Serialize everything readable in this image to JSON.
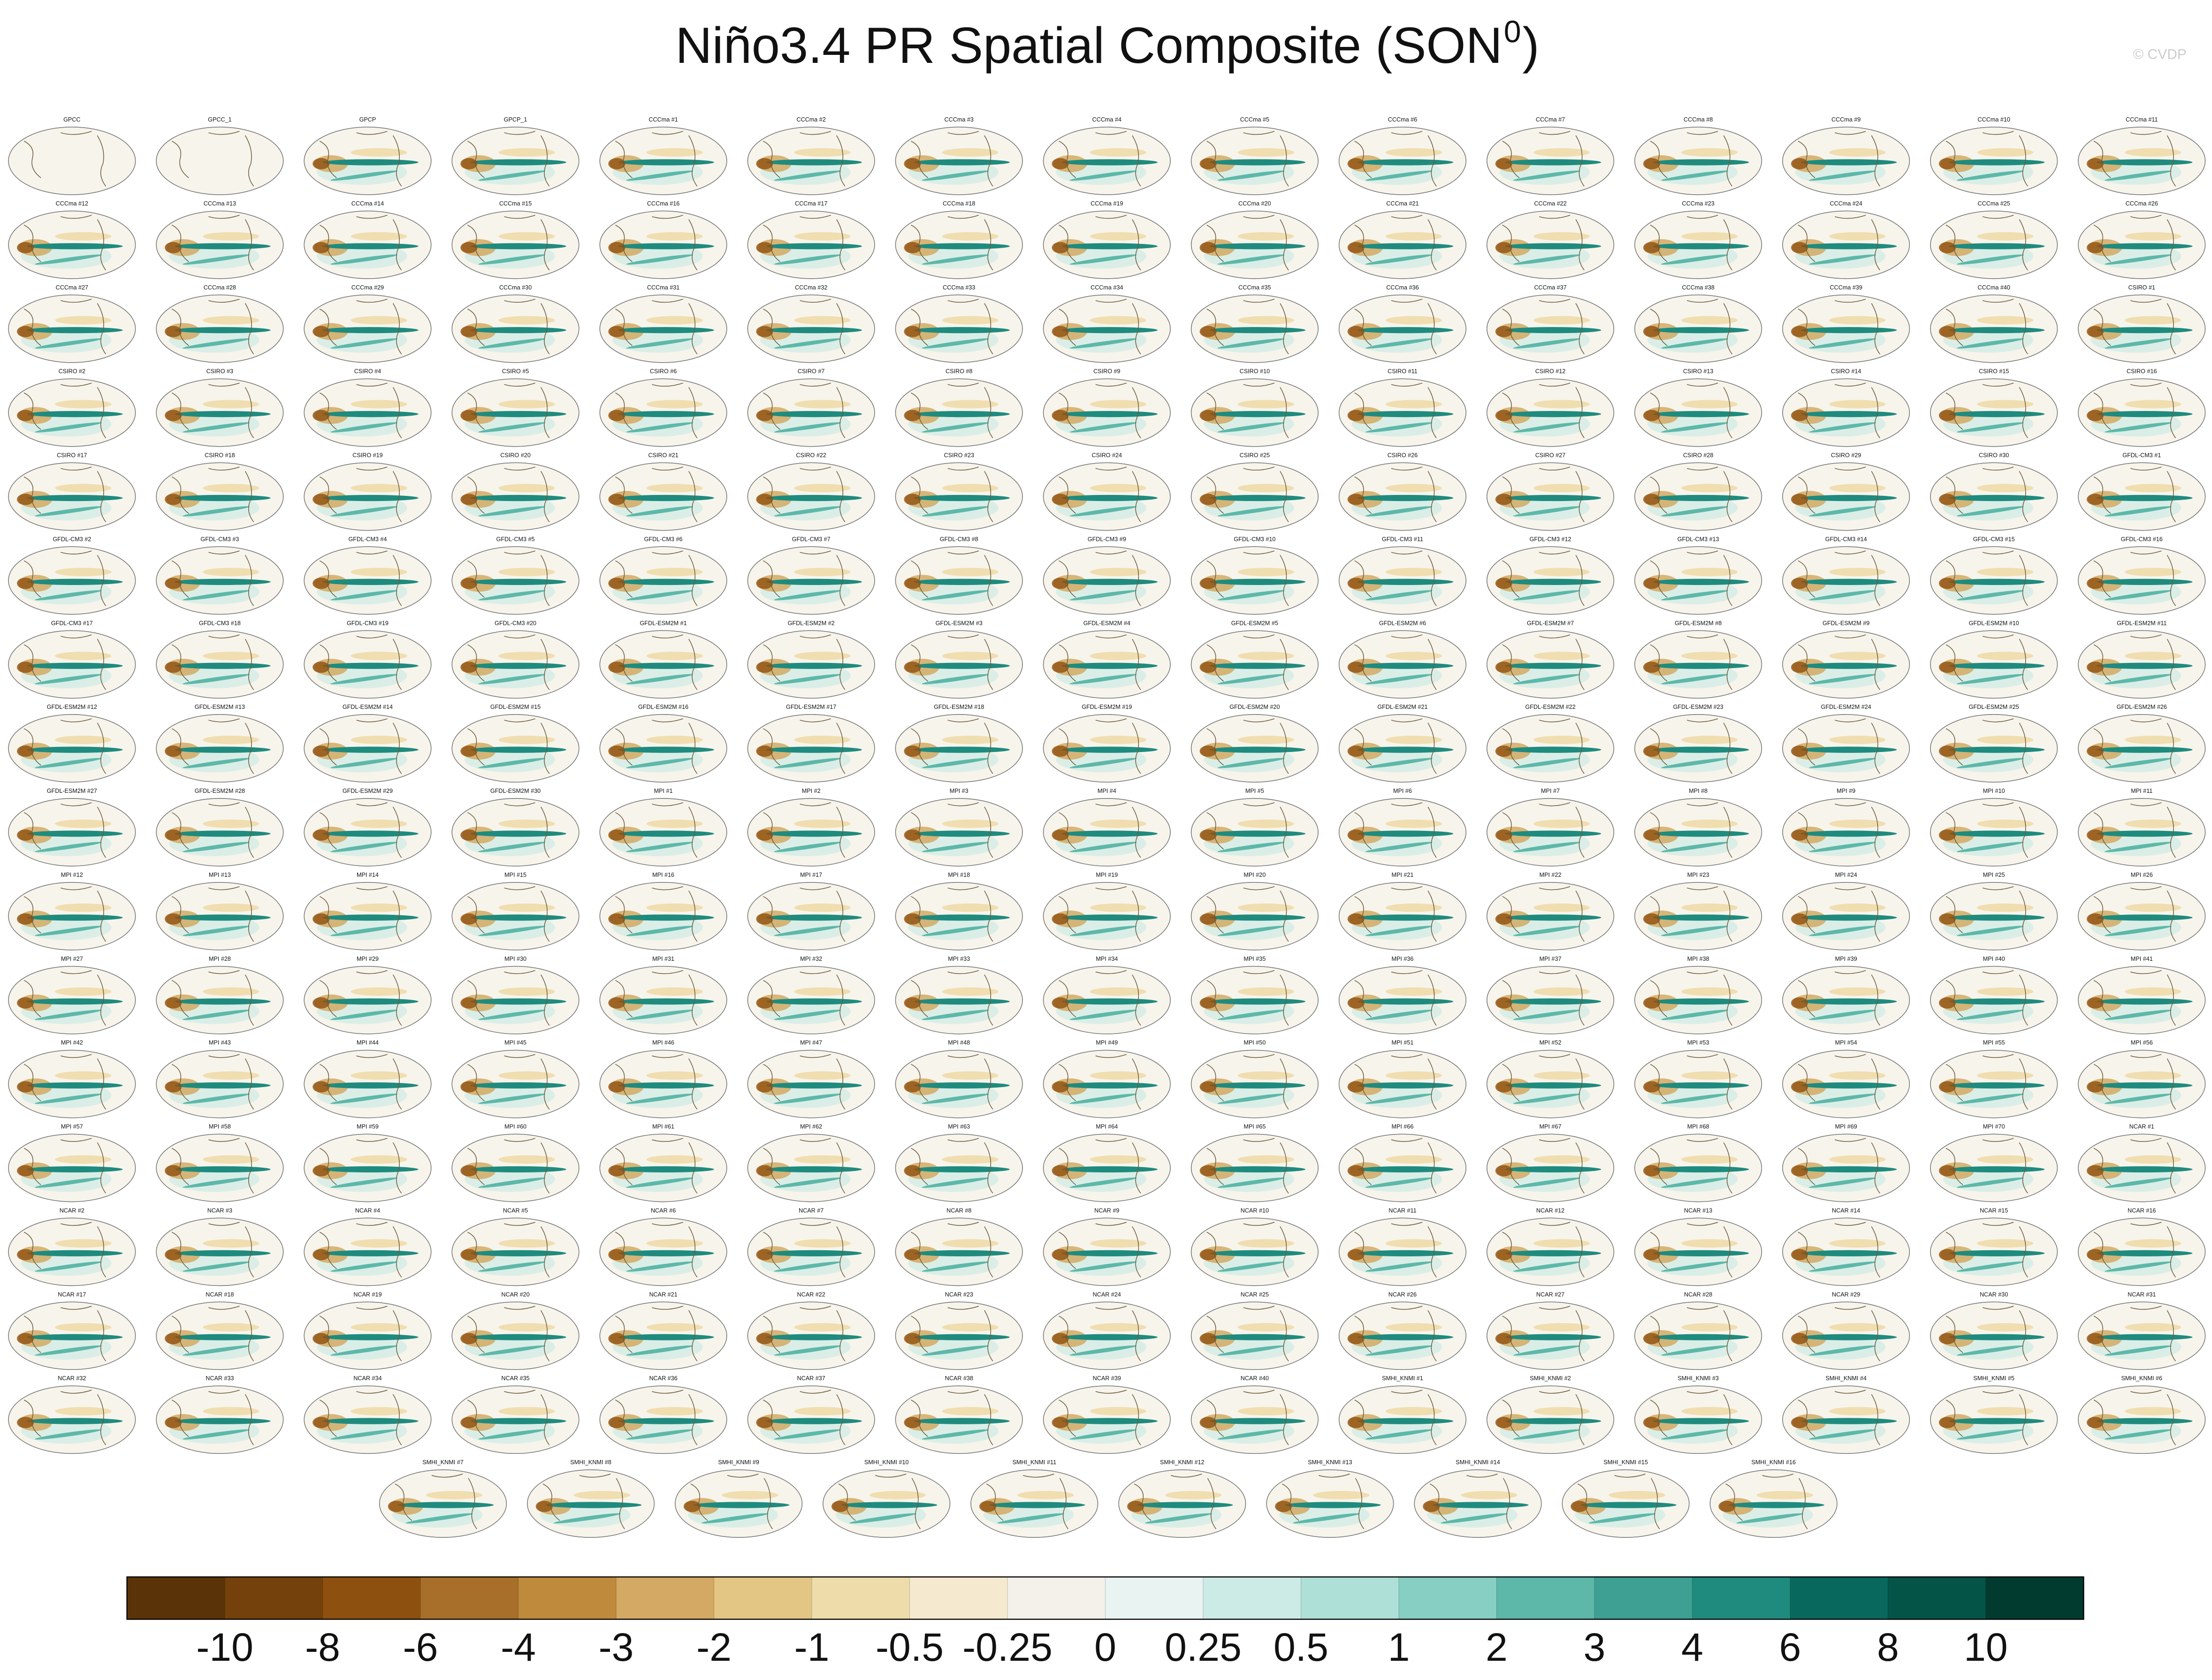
{
  "chart_data": {
    "type": "map-panels",
    "title": "Niño3.4 PR Spatial Composite (SON",
    "title_superscript": "0",
    "title_end": ")",
    "credit": "© CVDP",
    "panels": [
      "GPCC",
      "GPCC_1",
      "GPCP",
      "GPCP_1",
      "CCCma #1",
      "CCCma #2",
      "CCCma #3",
      "CCCma #4",
      "CCCma #5",
      "CCCma #6",
      "CCCma #7",
      "CCCma #8",
      "CCCma #9",
      "CCCma #10",
      "CCCma #11",
      "CCCma #12",
      "CCCma #13",
      "CCCma #14",
      "CCCma #15",
      "CCCma #16",
      "CCCma #17",
      "CCCma #18",
      "CCCma #19",
      "CCCma #20",
      "CCCma #21",
      "CCCma #22",
      "CCCma #23",
      "CCCma #24",
      "CCCma #25",
      "CCCma #26",
      "CCCma #27",
      "CCCma #28",
      "CCCma #29",
      "CCCma #30",
      "CCCma #31",
      "CCCma #32",
      "CCCma #33",
      "CCCma #34",
      "CCCma #35",
      "CCCma #36",
      "CCCma #37",
      "CCCma #38",
      "CCCma #39",
      "CCCma #40",
      "CSIRO #1",
      "CSIRO #2",
      "CSIRO #3",
      "CSIRO #4",
      "CSIRO #5",
      "CSIRO #6",
      "CSIRO #7",
      "CSIRO #8",
      "CSIRO #9",
      "CSIRO #10",
      "CSIRO #11",
      "CSIRO #12",
      "CSIRO #13",
      "CSIRO #14",
      "CSIRO #15",
      "CSIRO #16",
      "CSIRO #17",
      "CSIRO #18",
      "CSIRO #19",
      "CSIRO #20",
      "CSIRO #21",
      "CSIRO #22",
      "CSIRO #23",
      "CSIRO #24",
      "CSIRO #25",
      "CSIRO #26",
      "CSIRO #27",
      "CSIRO #28",
      "CSIRO #29",
      "CSIRO #30",
      "GFDL-CM3 #1",
      "GFDL-CM3 #2",
      "GFDL-CM3 #3",
      "GFDL-CM3 #4",
      "GFDL-CM3 #5",
      "GFDL-CM3 #6",
      "GFDL-CM3 #7",
      "GFDL-CM3 #8",
      "GFDL-CM3 #9",
      "GFDL-CM3 #10",
      "GFDL-CM3 #11",
      "GFDL-CM3 #12",
      "GFDL-CM3 #13",
      "GFDL-CM3 #14",
      "GFDL-CM3 #15",
      "GFDL-CM3 #16",
      "GFDL-CM3 #17",
      "GFDL-CM3 #18",
      "GFDL-CM3 #19",
      "GFDL-CM3 #20",
      "GFDL-ESM2M #1",
      "GFDL-ESM2M #2",
      "GFDL-ESM2M #3",
      "GFDL-ESM2M #4",
      "GFDL-ESM2M #5",
      "GFDL-ESM2M #6",
      "GFDL-ESM2M #7",
      "GFDL-ESM2M #8",
      "GFDL-ESM2M #9",
      "GFDL-ESM2M #10",
      "GFDL-ESM2M #11",
      "GFDL-ESM2M #12",
      "GFDL-ESM2M #13",
      "GFDL-ESM2M #14",
      "GFDL-ESM2M #15",
      "GFDL-ESM2M #16",
      "GFDL-ESM2M #17",
      "GFDL-ESM2M #18",
      "GFDL-ESM2M #19",
      "GFDL-ESM2M #20",
      "GFDL-ESM2M #21",
      "GFDL-ESM2M #22",
      "GFDL-ESM2M #23",
      "GFDL-ESM2M #24",
      "GFDL-ESM2M #25",
      "GFDL-ESM2M #26",
      "GFDL-ESM2M #27",
      "GFDL-ESM2M #28",
      "GFDL-ESM2M #29",
      "GFDL-ESM2M #30",
      "MPI #1",
      "MPI #2",
      "MPI #3",
      "MPI #4",
      "MPI #5",
      "MPI #6",
      "MPI #7",
      "MPI #8",
      "MPI #9",
      "MPI #10",
      "MPI #11",
      "MPI #12",
      "MPI #13",
      "MPI #14",
      "MPI #15",
      "MPI #16",
      "MPI #17",
      "MPI #18",
      "MPI #19",
      "MPI #20",
      "MPI #21",
      "MPI #22",
      "MPI #23",
      "MPI #24",
      "MPI #25",
      "MPI #26",
      "MPI #27",
      "MPI #28",
      "MPI #29",
      "MPI #30",
      "MPI #31",
      "MPI #32",
      "MPI #33",
      "MPI #34",
      "MPI #35",
      "MPI #36",
      "MPI #37",
      "MPI #38",
      "MPI #39",
      "MPI #40",
      "MPI #41",
      "MPI #42",
      "MPI #43",
      "MPI #44",
      "MPI #45",
      "MPI #46",
      "MPI #47",
      "MPI #48",
      "MPI #49",
      "MPI #50",
      "MPI #51",
      "MPI #52",
      "MPI #53",
      "MPI #54",
      "MPI #55",
      "MPI #56",
      "MPI #57",
      "MPI #58",
      "MPI #59",
      "MPI #60",
      "MPI #61",
      "MPI #62",
      "MPI #63",
      "MPI #64",
      "MPI #65",
      "MPI #66",
      "MPI #67",
      "MPI #68",
      "MPI #69",
      "MPI #70",
      "NCAR #1",
      "NCAR #2",
      "NCAR #3",
      "NCAR #4",
      "NCAR #5",
      "NCAR #6",
      "NCAR #7",
      "NCAR #8",
      "NCAR #9",
      "NCAR #10",
      "NCAR #11",
      "NCAR #12",
      "NCAR #13",
      "NCAR #14",
      "NCAR #15",
      "NCAR #16",
      "NCAR #17",
      "NCAR #18",
      "NCAR #19",
      "NCAR #20",
      "NCAR #21",
      "NCAR #22",
      "NCAR #23",
      "NCAR #24",
      "NCAR #25",
      "NCAR #26",
      "NCAR #27",
      "NCAR #28",
      "NCAR #29",
      "NCAR #30",
      "NCAR #31",
      "NCAR #32",
      "NCAR #33",
      "NCAR #34",
      "NCAR #35",
      "NCAR #36",
      "NCAR #37",
      "NCAR #38",
      "NCAR #39",
      "NCAR #40",
      "SMHI_KNMI #1",
      "SMHI_KNMI #2",
      "SMHI_KNMI #3",
      "SMHI_KNMI #4",
      "SMHI_KNMI #5",
      "SMHI_KNMI #6",
      "SMHI_KNMI #7",
      "SMHI_KNMI #8",
      "SMHI_KNMI #9",
      "SMHI_KNMI #10",
      "SMHI_KNMI #11",
      "SMHI_KNMI #12",
      "SMHI_KNMI #13",
      "SMHI_KNMI #14",
      "SMHI_KNMI #15",
      "SMHI_KNMI #16"
    ],
    "colorbar": {
      "levels": [
        -10,
        -8,
        -6,
        -4,
        -3,
        -2,
        -1,
        -0.5,
        -0.25,
        0,
        0.25,
        0.5,
        1,
        2,
        3,
        4,
        6,
        8,
        10
      ],
      "colors": [
        "#5a3408",
        "#74400b",
        "#8e500f",
        "#a86f2a",
        "#c08a3c",
        "#d3a963",
        "#e3c584",
        "#eedcaa",
        "#f5ead0",
        "#f4f1ea",
        "#e9f3f1",
        "#cdebe6",
        "#aee0d8",
        "#86cfc2",
        "#5db8a9",
        "#3da093",
        "#1f8b7e",
        "#08685d",
        "#045448",
        "#013b30"
      ]
    }
  }
}
